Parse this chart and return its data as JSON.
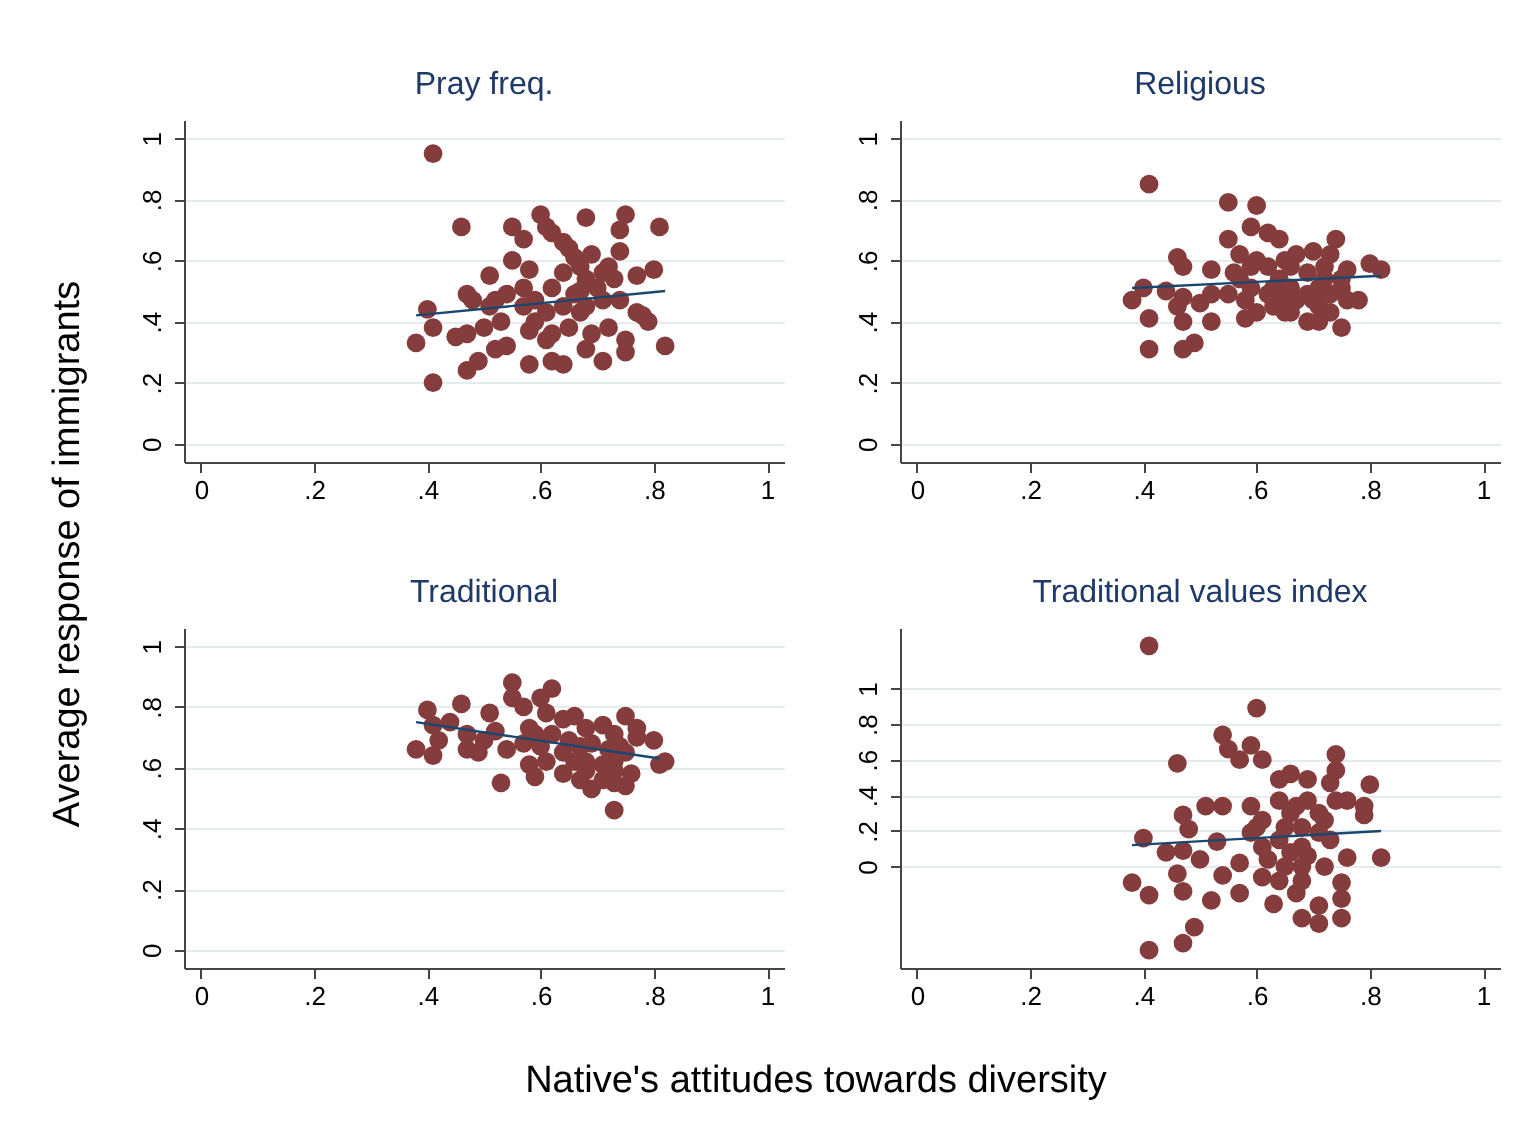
{
  "chart_data": [
    {
      "type": "scatter",
      "title": "Pray freq.",
      "xlabel": "Native's attitudes towards diversity",
      "ylabel": "Average response of immigrants",
      "grid": "y",
      "xlim": [
        -0.03,
        1.03
      ],
      "ylim": [
        -0.06,
        1.06
      ],
      "xticks": [
        {
          "value": 0,
          "label": "0"
        },
        {
          "value": 0.2,
          "label": ".2"
        },
        {
          "value": 0.4,
          "label": ".4"
        },
        {
          "value": 0.6,
          "label": ".6"
        },
        {
          "value": 0.8,
          "label": ".8"
        },
        {
          "value": 1,
          "label": "1"
        }
      ],
      "yticks": [
        {
          "value": 0,
          "label": "0"
        },
        {
          "value": 0.2,
          "label": ".2"
        },
        {
          "value": 0.4,
          "label": ".4"
        },
        {
          "value": 0.6,
          "label": ".6"
        },
        {
          "value": 0.8,
          "label": ".8"
        },
        {
          "value": 1,
          "label": "1"
        }
      ],
      "series": [
        {
          "type": "scatter",
          "marker": "circle",
          "color": "#853c3c",
          "x": [
            0.41,
            0.46,
            0.4,
            0.41,
            0.38,
            0.41,
            0.45,
            0.47,
            0.47,
            0.48,
            0.47,
            0.49,
            0.5,
            0.51,
            0.52,
            0.53,
            0.52,
            0.54,
            0.55,
            0.55,
            0.57,
            0.57,
            0.58,
            0.58,
            0.6,
            0.61,
            0.62,
            0.64,
            0.65,
            0.66,
            0.68,
            0.69,
            0.74,
            0.75,
            0.74,
            0.81,
            0.8,
            0.77,
            0.78,
            0.79,
            0.82,
            0.75,
            0.71,
            0.68,
            0.64,
            0.62,
            0.61,
            0.59,
            0.59,
            0.64,
            0.66,
            0.67,
            0.68,
            0.71,
            0.72,
            0.73,
            0.69,
            0.67,
            0.62,
            0.61,
            0.65,
            0.71,
            0.74,
            0.68,
            0.64,
            0.67,
            0.57,
            0.54,
            0.51,
            0.58,
            0.62,
            0.7,
            0.72,
            0.75,
            0.77
          ],
          "values": [
            0.95,
            0.71,
            0.44,
            0.38,
            0.33,
            0.2,
            0.35,
            0.36,
            0.49,
            0.47,
            0.24,
            0.27,
            0.38,
            0.55,
            0.47,
            0.4,
            0.31,
            0.32,
            0.6,
            0.71,
            0.67,
            0.51,
            0.26,
            0.57,
            0.75,
            0.71,
            0.69,
            0.66,
            0.64,
            0.61,
            0.74,
            0.62,
            0.63,
            0.75,
            0.7,
            0.71,
            0.57,
            0.55,
            0.42,
            0.4,
            0.32,
            0.3,
            0.27,
            0.31,
            0.26,
            0.27,
            0.34,
            0.4,
            0.47,
            0.56,
            0.49,
            0.43,
            0.54,
            0.47,
            0.38,
            0.54,
            0.36,
            0.58,
            0.51,
            0.43,
            0.38,
            0.56,
            0.47,
            0.45,
            0.45,
            0.5,
            0.45,
            0.49,
            0.45,
            0.37,
            0.36,
            0.51,
            0.58,
            0.34,
            0.43
          ]
        },
        {
          "type": "line",
          "color": "#1a476f",
          "x": [
            0.38,
            0.82
          ],
          "values": [
            0.42,
            0.5
          ]
        }
      ]
    },
    {
      "type": "scatter",
      "title": "Religious",
      "grid": "y",
      "xlim": [
        -0.03,
        1.03
      ],
      "ylim": [
        -0.06,
        1.06
      ],
      "xticks": [
        {
          "value": 0,
          "label": "0"
        },
        {
          "value": 0.2,
          "label": ".2"
        },
        {
          "value": 0.4,
          "label": ".4"
        },
        {
          "value": 0.6,
          "label": ".6"
        },
        {
          "value": 0.8,
          "label": ".8"
        },
        {
          "value": 1,
          "label": "1"
        }
      ],
      "yticks": [
        {
          "value": 0,
          "label": "0"
        },
        {
          "value": 0.2,
          "label": ".2"
        },
        {
          "value": 0.4,
          "label": ".4"
        },
        {
          "value": 0.6,
          "label": ".6"
        },
        {
          "value": 0.8,
          "label": ".8"
        },
        {
          "value": 1,
          "label": "1"
        }
      ],
      "series": [
        {
          "type": "scatter",
          "marker": "circle",
          "color": "#853c3c",
          "x": [
            0.41,
            0.38,
            0.4,
            0.41,
            0.41,
            0.44,
            0.46,
            0.47,
            0.46,
            0.47,
            0.47,
            0.49,
            0.47,
            0.5,
            0.52,
            0.52,
            0.55,
            0.55,
            0.57,
            0.58,
            0.6,
            0.59,
            0.62,
            0.64,
            0.67,
            0.7,
            0.74,
            0.73,
            0.75,
            0.76,
            0.78,
            0.8,
            0.82,
            0.76,
            0.73,
            0.71,
            0.69,
            0.66,
            0.63,
            0.6,
            0.59,
            0.57,
            0.55,
            0.52,
            0.62,
            0.64,
            0.66,
            0.69,
            0.71,
            0.65,
            0.67,
            0.7,
            0.63,
            0.6,
            0.62,
            0.64,
            0.69,
            0.72,
            0.75,
            0.71,
            0.59,
            0.66,
            0.58,
            0.56,
            0.73,
            0.75,
            0.65,
            0.72
          ],
          "values": [
            0.85,
            0.47,
            0.51,
            0.41,
            0.31,
            0.5,
            0.61,
            0.58,
            0.45,
            0.4,
            0.31,
            0.33,
            0.48,
            0.46,
            0.4,
            0.57,
            0.79,
            0.67,
            0.62,
            0.41,
            0.78,
            0.71,
            0.69,
            0.67,
            0.62,
            0.63,
            0.67,
            0.62,
            0.38,
            0.47,
            0.47,
            0.59,
            0.57,
            0.57,
            0.43,
            0.4,
            0.4,
            0.43,
            0.45,
            0.43,
            0.51,
            0.54,
            0.49,
            0.49,
            0.58,
            0.54,
            0.51,
            0.56,
            0.51,
            0.6,
            0.47,
            0.47,
            0.51,
            0.6,
            0.49,
            0.47,
            0.49,
            0.54,
            0.51,
            0.45,
            0.58,
            0.58,
            0.47,
            0.56,
            0.49,
            0.54,
            0.43,
            0.58
          ]
        },
        {
          "type": "line",
          "color": "#1a476f",
          "x": [
            0.38,
            0.82
          ],
          "values": [
            0.51,
            0.55
          ]
        }
      ]
    },
    {
      "type": "scatter",
      "title": "Traditional",
      "grid": "y",
      "xlim": [
        -0.03,
        1.03
      ],
      "ylim": [
        -0.06,
        1.06
      ],
      "xticks": [
        {
          "value": 0,
          "label": "0"
        },
        {
          "value": 0.2,
          "label": ".2"
        },
        {
          "value": 0.4,
          "label": ".4"
        },
        {
          "value": 0.6,
          "label": ".6"
        },
        {
          "value": 0.8,
          "label": ".8"
        },
        {
          "value": 1,
          "label": "1"
        }
      ],
      "yticks": [
        {
          "value": 0,
          "label": "0"
        },
        {
          "value": 0.2,
          "label": ".2"
        },
        {
          "value": 0.4,
          "label": ".4"
        },
        {
          "value": 0.6,
          "label": ".6"
        },
        {
          "value": 0.8,
          "label": ".8"
        },
        {
          "value": 1,
          "label": "1"
        }
      ],
      "series": [
        {
          "type": "scatter",
          "marker": "circle",
          "color": "#853c3c",
          "x": [
            0.38,
            0.4,
            0.41,
            0.41,
            0.42,
            0.44,
            0.46,
            0.47,
            0.47,
            0.49,
            0.5,
            0.51,
            0.52,
            0.53,
            0.54,
            0.55,
            0.55,
            0.57,
            0.58,
            0.59,
            0.6,
            0.62,
            0.61,
            0.64,
            0.67,
            0.69,
            0.73,
            0.75,
            0.76,
            0.75,
            0.77,
            0.77,
            0.8,
            0.81,
            0.82,
            0.73,
            0.71,
            0.64,
            0.66,
            0.68,
            0.71,
            0.73,
            0.62,
            0.65,
            0.67,
            0.69,
            0.72,
            0.74,
            0.64,
            0.66,
            0.68,
            0.71,
            0.73,
            0.75,
            0.59,
            0.6,
            0.58,
            0.57,
            0.61,
            0.68,
            0.73
          ],
          "values": [
            0.66,
            0.79,
            0.74,
            0.64,
            0.69,
            0.75,
            0.81,
            0.71,
            0.66,
            0.65,
            0.69,
            0.78,
            0.72,
            0.55,
            0.66,
            0.88,
            0.83,
            0.8,
            0.61,
            0.57,
            0.83,
            0.86,
            0.78,
            0.58,
            0.56,
            0.53,
            0.46,
            0.54,
            0.58,
            0.77,
            0.73,
            0.7,
            0.69,
            0.61,
            0.62,
            0.55,
            0.56,
            0.76,
            0.77,
            0.73,
            0.74,
            0.71,
            0.71,
            0.69,
            0.67,
            0.68,
            0.66,
            0.67,
            0.65,
            0.62,
            0.62,
            0.61,
            0.62,
            0.65,
            0.71,
            0.67,
            0.73,
            0.68,
            0.62,
            0.59,
            0.59
          ]
        },
        {
          "type": "line",
          "color": "#1a476f",
          "x": [
            0.38,
            0.81
          ],
          "values": [
            0.75,
            0.63
          ]
        }
      ]
    },
    {
      "type": "scatter",
      "title": "Traditional values index",
      "grid": "y",
      "xlim": [
        -0.03,
        1.03
      ],
      "ylim": [
        -0.57,
        1.34
      ],
      "xticks": [
        {
          "value": 0,
          "label": "0"
        },
        {
          "value": 0.2,
          "label": ".2"
        },
        {
          "value": 0.4,
          "label": ".4"
        },
        {
          "value": 0.6,
          "label": ".6"
        },
        {
          "value": 0.8,
          "label": ".8"
        },
        {
          "value": 1,
          "label": "1"
        }
      ],
      "yticks": [
        {
          "value": 0,
          "label": "0"
        },
        {
          "value": 0.2,
          "label": ".2"
        },
        {
          "value": 0.4,
          "label": ".4"
        },
        {
          "value": 0.6,
          "label": ".6"
        },
        {
          "value": 0.8,
          "label": ".8"
        },
        {
          "value": 1,
          "label": "1"
        }
      ],
      "series": [
        {
          "type": "scatter",
          "marker": "circle",
          "color": "#853c3c",
          "x": [
            0.41,
            0.6,
            0.54,
            0.55,
            0.57,
            0.59,
            0.61,
            0.46,
            0.74,
            0.74,
            0.73,
            0.8,
            0.79,
            0.79,
            0.82,
            0.76,
            0.75,
            0.75,
            0.75,
            0.71,
            0.68,
            0.71,
            0.63,
            0.57,
            0.52,
            0.49,
            0.47,
            0.41,
            0.41,
            0.38,
            0.46,
            0.47,
            0.44,
            0.4,
            0.47,
            0.48,
            0.51,
            0.47,
            0.5,
            0.53,
            0.54,
            0.54,
            0.57,
            0.61,
            0.64,
            0.66,
            0.69,
            0.69,
            0.72,
            0.76,
            0.72,
            0.68,
            0.67,
            0.59,
            0.61,
            0.64,
            0.66,
            0.68,
            0.59,
            0.61,
            0.64,
            0.66,
            0.68,
            0.71,
            0.62,
            0.65,
            0.69,
            0.6,
            0.65,
            0.67,
            0.71,
            0.64,
            0.68,
            0.73,
            0.74
          ],
          "values": [
            1.24,
            0.89,
            0.74,
            0.66,
            0.6,
            0.68,
            0.6,
            0.58,
            0.63,
            0.54,
            0.47,
            0.46,
            0.34,
            0.29,
            0.05,
            0.05,
            -0.09,
            -0.18,
            -0.29,
            -0.32,
            -0.29,
            -0.22,
            -0.21,
            -0.15,
            -0.19,
            -0.34,
            -0.43,
            -0.47,
            -0.16,
            -0.09,
            -0.04,
            -0.14,
            0.08,
            0.16,
            0.29,
            0.21,
            0.34,
            0.09,
            0.04,
            0.14,
            -0.05,
            0.34,
            0.02,
            -0.06,
            0.49,
            0.52,
            0.49,
            0.37,
            0.26,
            0.37,
            0,
            -0.08,
            -0.15,
            0.34,
            0.26,
            0.37,
            0.3,
            0.22,
            0.19,
            0.11,
            0.15,
            0.08,
            0.11,
            0.19,
            0.04,
            0,
            0.06,
            0.22,
            0.22,
            0.34,
            0.3,
            -0.08,
            0,
            0.15,
            0.37
          ]
        },
        {
          "type": "line",
          "color": "#1a476f",
          "x": [
            0.38,
            0.82
          ],
          "values": [
            0.12,
            0.2
          ]
        }
      ]
    }
  ]
}
